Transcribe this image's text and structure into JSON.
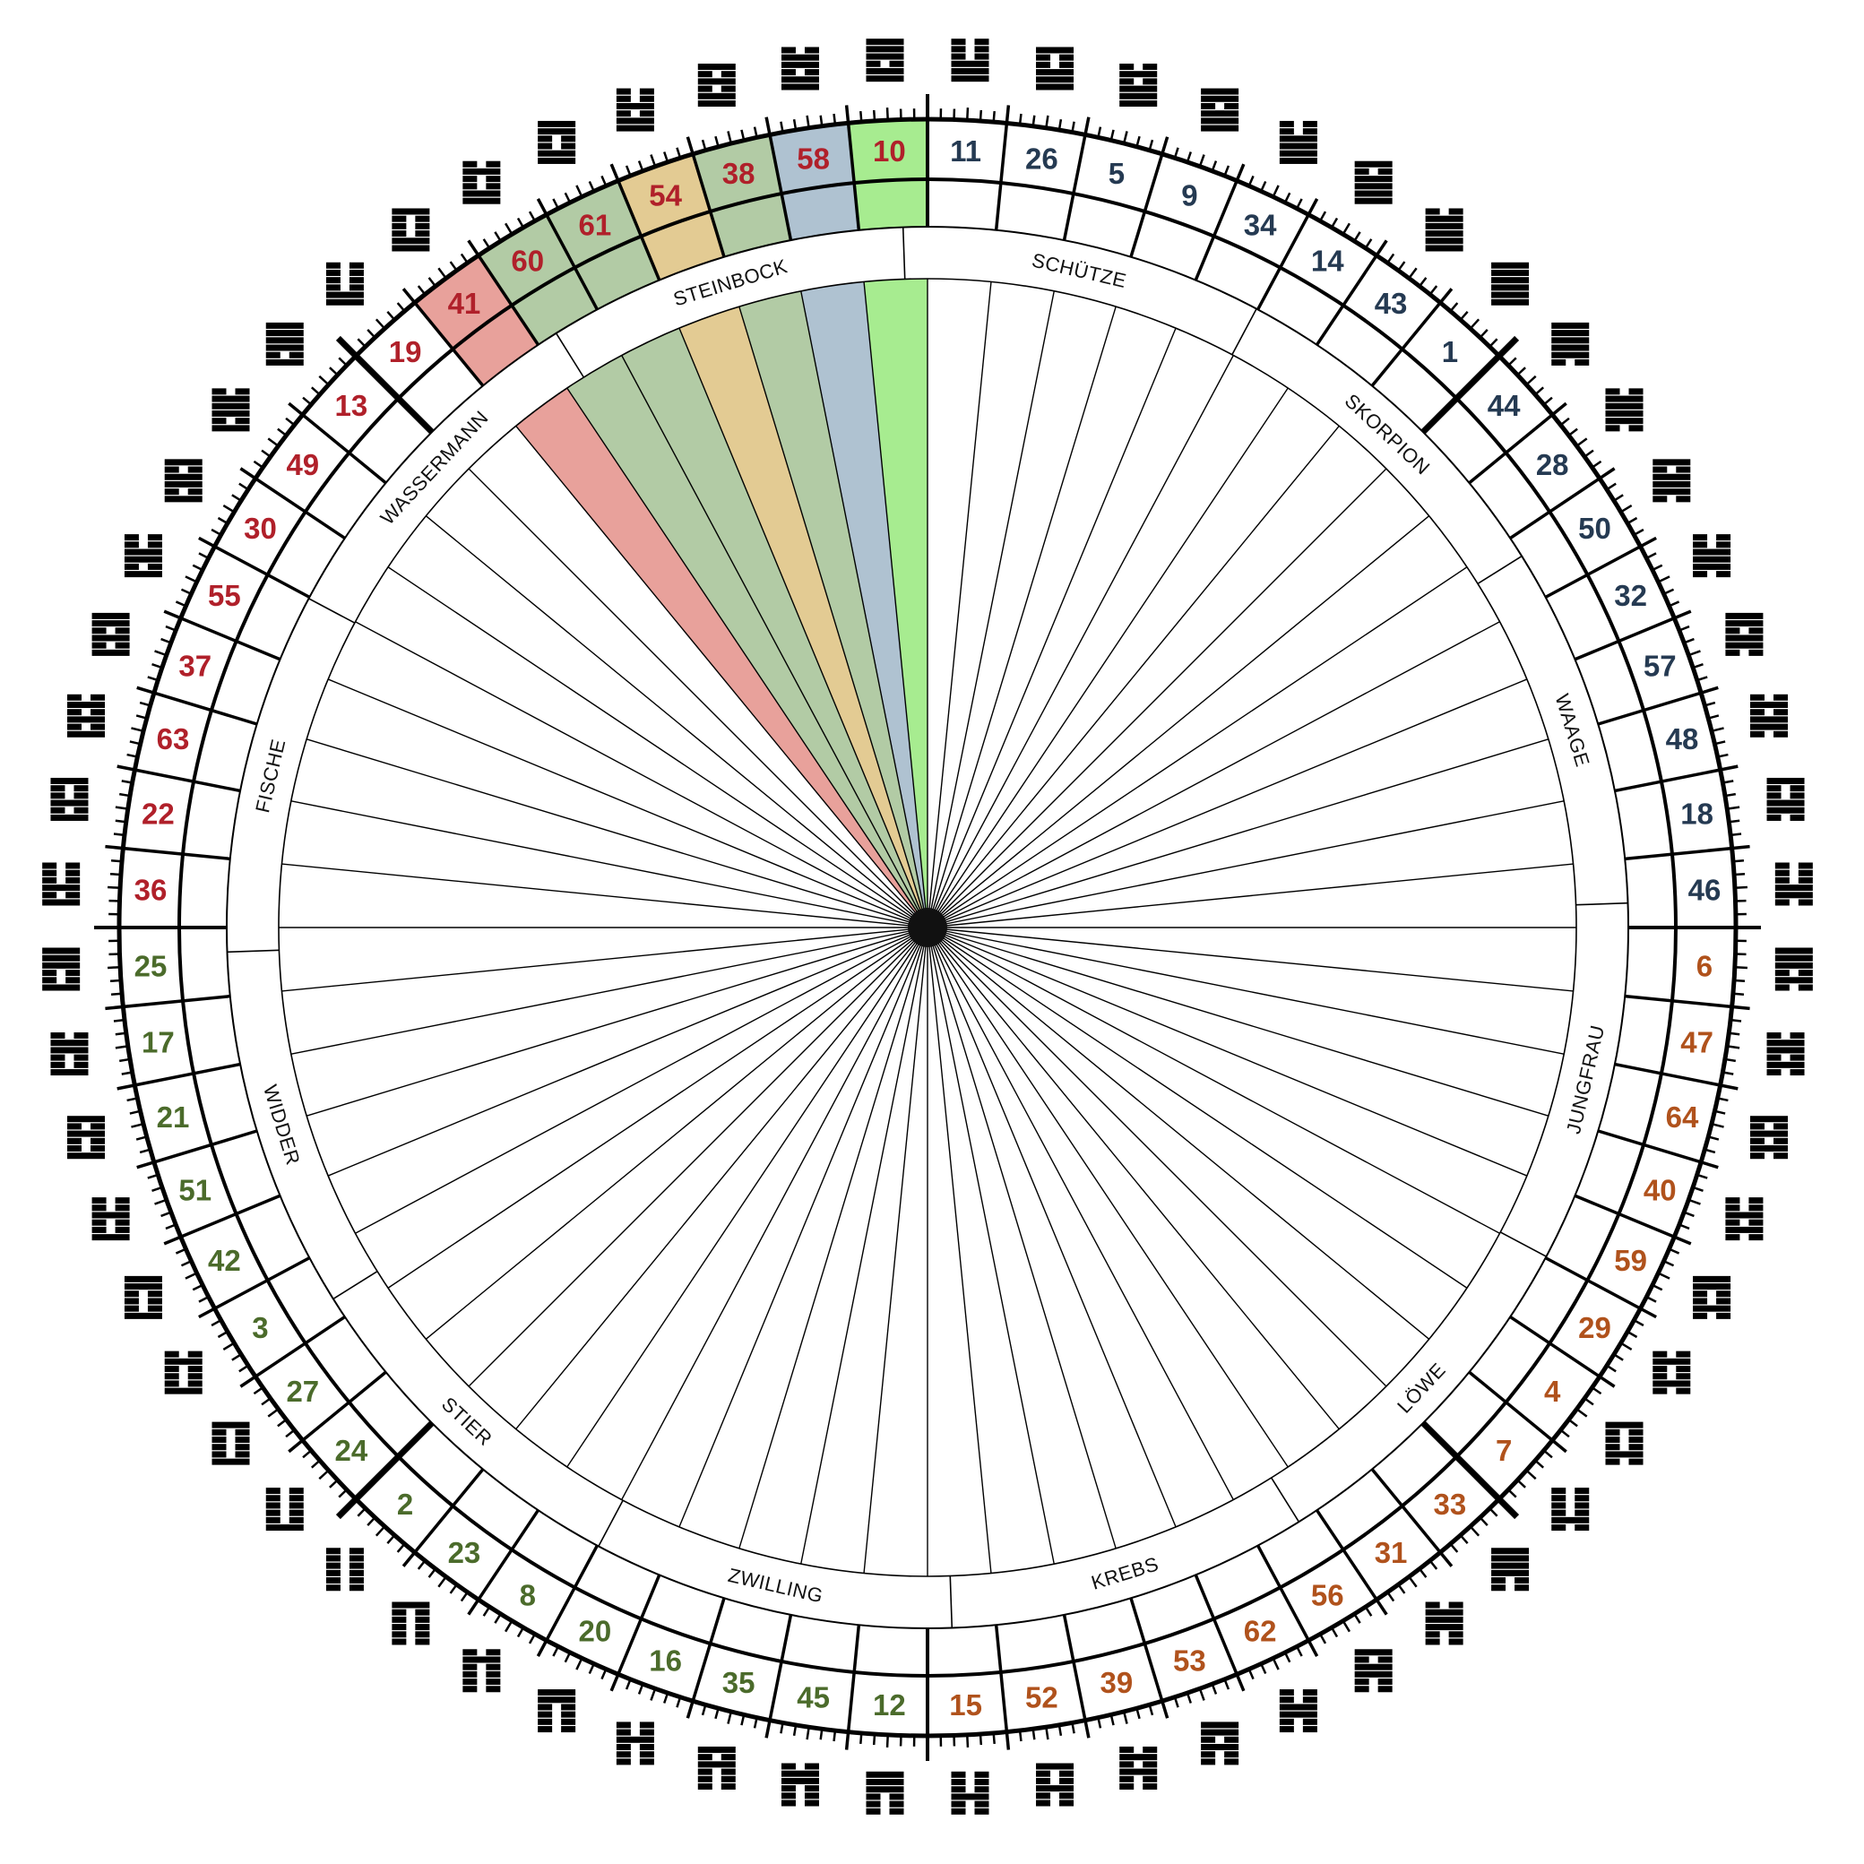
{
  "gates_clockwise_from_top": [
    11,
    26,
    5,
    9,
    34,
    14,
    43,
    1,
    44,
    28,
    50,
    32,
    57,
    48,
    18,
    46,
    6,
    47,
    64,
    40,
    59,
    29,
    4,
    7,
    33,
    31,
    56,
    62,
    53,
    39,
    52,
    15,
    12,
    45,
    35,
    16,
    20,
    8,
    23,
    2,
    24,
    27,
    3,
    42,
    51,
    21,
    17,
    25,
    36,
    22,
    63,
    37,
    55,
    30,
    49,
    13,
    19,
    41,
    60,
    61,
    54,
    38,
    58,
    10
  ],
  "quadrant_text_colors": [
    "#253a52",
    "#b0521c",
    "#4b6b2b",
    "#b0202a"
  ],
  "highlighted_gates": {
    "41": "#e8a19b",
    "60": "#b2cba5",
    "61": "#b2cba5",
    "54": "#e3cb93",
    "38": "#b2cba5",
    "58": "#afc2d1",
    "10": "#a7ec90"
  },
  "zodiac_clockwise": [
    "SCHÜTZE",
    "SKORPION",
    "WAAGE",
    "JUNGFRAU",
    "LÖWE",
    "KREBS",
    "ZWILLING",
    "STIER",
    "WIDDER",
    "FISCHE",
    "WASSERMANN",
    "STEINBOCK"
  ],
  "zodiac_offset_degrees": -2
}
